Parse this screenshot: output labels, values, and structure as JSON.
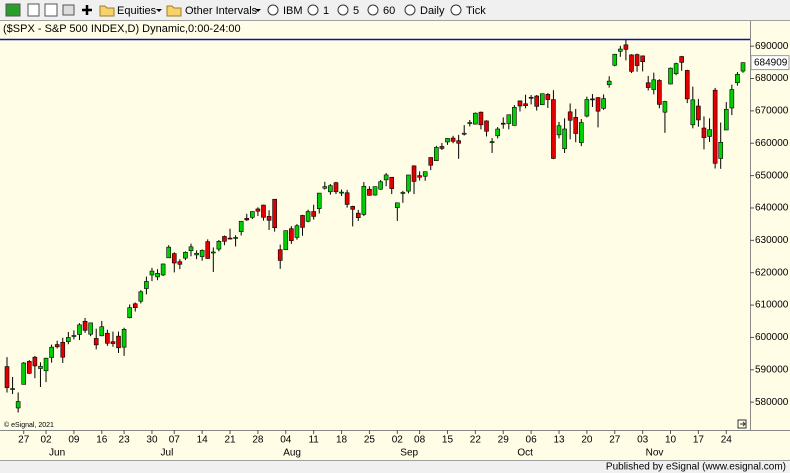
{
  "toolbar": {
    "items": [
      "Equities",
      "Other Intervals",
      "IBM",
      "1",
      "5",
      "60",
      "Daily",
      "Tick"
    ]
  },
  "chart_data": {
    "type": "candlestick",
    "title": "($SPX - S&P 500 INDEX,D) Dynamic,0:00-24:00",
    "categories": [
      null,
      null,
      null,
      "27",
      null,
      null,
      null,
      "02",
      null,
      null,
      null,
      null,
      "09",
      null,
      null,
      null,
      null,
      "16",
      null,
      null,
      null,
      "23",
      null,
      null,
      null,
      null,
      "30",
      null,
      null,
      null,
      "07",
      null,
      null,
      null,
      null,
      "14",
      null,
      null,
      null,
      null,
      "21",
      null,
      null,
      null,
      null,
      "28",
      null,
      null,
      null,
      null,
      "04",
      null,
      null,
      null,
      null,
      "11",
      null,
      null,
      null,
      null,
      "18",
      null,
      null,
      null,
      null,
      "25",
      null,
      null,
      null,
      null,
      "02",
      null,
      null,
      null,
      "08",
      null,
      null,
      null,
      null,
      "15",
      null,
      null,
      null,
      null,
      "22",
      null,
      null,
      null,
      null,
      "29",
      null,
      null,
      null,
      null,
      "06",
      null,
      null,
      null,
      null,
      "13",
      null,
      null,
      null,
      null,
      "20",
      null,
      null,
      null,
      null,
      "27",
      null,
      null,
      null,
      null,
      "03",
      null,
      null,
      null,
      null,
      "10",
      null,
      null,
      null,
      null,
      "17",
      null,
      null,
      null,
      null,
      "24",
      null,
      null,
      null
    ],
    "months": [
      null,
      null,
      null,
      null,
      null,
      null,
      null,
      "Jun",
      null,
      null,
      null,
      null,
      null,
      null,
      null,
      null,
      null,
      null,
      null,
      null,
      null,
      null,
      null,
      null,
      null,
      null,
      null,
      "Jul",
      null,
      null,
      null,
      null,
      null,
      null,
      null,
      null,
      null,
      null,
      null,
      null,
      null,
      null,
      null,
      null,
      null,
      null,
      null,
      null,
      null,
      "Aug",
      null,
      null,
      null,
      null,
      null,
      null,
      null,
      null,
      null,
      null,
      null,
      null,
      null,
      null,
      null,
      null,
      null,
      null,
      null,
      null,
      "Sep",
      null,
      null,
      null,
      null,
      null,
      null,
      null,
      null,
      null,
      null,
      null,
      null,
      null,
      null,
      null,
      null,
      null,
      null,
      null,
      null,
      "Oct",
      null,
      null,
      null,
      null,
      null,
      null,
      null,
      null,
      null,
      null,
      null,
      null,
      null,
      null,
      null,
      null,
      null,
      null,
      null,
      null,
      null,
      null,
      "Nov",
      null,
      null,
      null,
      null,
      null,
      null,
      null,
      null,
      null,
      null,
      null,
      null,
      null,
      null,
      null,
      null,
      null,
      null,
      null,
      null,
      null,
      null
    ],
    "open": [
      591000,
      584200,
      578200,
      585500,
      592600,
      593900,
      590400,
      589700,
      593800,
      597800,
      598500,
      598700,
      600500,
      600900,
      605000,
      601000,
      599700,
      600500,
      601300,
      598700,
      600400,
      597000,
      606100,
      610400,
      611200,
      615100,
      619300,
      618700,
      619300,
      624600,
      625900,
      623400,
      624500,
      626800,
      625500,
      625000,
      629600,
      626200,
      627300,
      631200,
      630700,
      630700,
      632700,
      636800,
      637100,
      639700,
      640900,
      637400,
      642700,
      627100,
      627100,
      633600,
      630900,
      637700,
      635900,
      638900,
      639800,
      646100,
      645000,
      647800,
      644600,
      644700,
      640500,
      638400,
      638000,
      645800,
      644000,
      645800,
      648700,
      649500,
      640100,
      644500,
      645200,
      653000,
      650000,
      649800,
      655600,
      654600,
      659000,
      660400,
      661600,
      660800,
      663100,
      666100,
      665900,
      669600,
      666900,
      660500,
      662300,
      666200,
      666100,
      665500,
      673100,
      672200,
      674200,
      674600,
      671900,
      675100,
      673500,
      662600,
      658300,
      669700,
      668000,
      660200,
      668400,
      673700,
      674100,
      670800,
      678100,
      684100,
      688400,
      690400,
      687300,
      687400,
      687000,
      678700,
      676600,
      679400,
      669600,
      678300,
      681500,
      686800,
      682500,
      665700,
      671500,
      664700,
      662100,
      676400,
      655300,
      664100,
      670900,
      678700,
      682300
    ],
    "high": [
      593900,
      587800,
      583000,
      592400,
      593000,
      594300,
      592300,
      593700,
      597800,
      599000,
      599900,
      601700,
      602200,
      604400,
      606000,
      604600,
      602700,
      605100,
      602400,
      601800,
      601800,
      603000,
      610200,
      610800,
      614600,
      618800,
      621500,
      621100,
      622800,
      628500,
      626300,
      624200,
      626600,
      629000,
      626900,
      627200,
      630300,
      627800,
      630100,
      631500,
      633600,
      631600,
      635900,
      638200,
      639000,
      640200,
      641000,
      639300,
      642700,
      628700,
      633000,
      634400,
      635000,
      637900,
      639500,
      641000,
      644600,
      648100,
      647400,
      648100,
      645700,
      645600,
      640700,
      639400,
      648000,
      646700,
      646600,
      648600,
      650800,
      649500,
      641600,
      645300,
      650200,
      653200,
      651300,
      651300,
      655600,
      659200,
      660100,
      661600,
      662300,
      662600,
      665600,
      667200,
      669500,
      669800,
      667100,
      661600,
      665000,
      668000,
      668900,
      671800,
      673100,
      675000,
      674900,
      674900,
      675300,
      675500,
      676400,
      666600,
      667700,
      672300,
      670600,
      667500,
      674400,
      675200,
      674300,
      675100,
      680700,
      687600,
      690100,
      692000,
      687500,
      687700,
      687000,
      680800,
      681800,
      679800,
      673100,
      683400,
      684900,
      687000,
      682700,
      677500,
      673700,
      668300,
      667700,
      677100,
      666400,
      672700,
      678100,
      682000,
      685000
    ],
    "low": [
      583000,
      582500,
      576800,
      585500,
      588700,
      587400,
      584700,
      586200,
      592200,
      596600,
      592100,
      597900,
      599400,
      599200,
      601400,
      600400,
      596300,
      600400,
      597400,
      597100,
      595200,
      594300,
      605900,
      608000,
      610500,
      613300,
      617400,
      617700,
      619000,
      624600,
      620100,
      621100,
      623900,
      625100,
      624200,
      623700,
      624300,
      620200,
      626600,
      628500,
      630300,
      628100,
      631500,
      636000,
      636600,
      637500,
      636100,
      633200,
      632700,
      621200,
      627000,
      628900,
      630200,
      631400,
      635600,
      636400,
      638300,
      645700,
      644100,
      644300,
      643700,
      640100,
      634300,
      636000,
      637500,
      643800,
      643800,
      645600,
      646700,
      644300,
      636000,
      641600,
      644500,
      644300,
      648500,
      648400,
      651700,
      654600,
      657900,
      659500,
      660000,
      655200,
      662400,
      665200,
      665900,
      664300,
      662100,
      657000,
      661500,
      664500,
      664300,
      665600,
      669800,
      670800,
      672000,
      670100,
      671800,
      670900,
      655100,
      661500,
      657000,
      661200,
      660300,
      659100,
      668000,
      671200,
      664900,
      670300,
      677200,
      683800,
      686700,
      685600,
      681700,
      682100,
      682200,
      676300,
      675100,
      670800,
      663200,
      678200,
      681000,
      682400,
      672400,
      664600,
      665100,
      658100,
      660400,
      652200,
      652100,
      664100,
      668700,
      677800,
      681800
    ],
    "close": [
      584500,
      584200,
      580200,
      592100,
      588900,
      591200,
      591100,
      593600,
      597000,
      597100,
      593900,
      600000,
      600600,
      603900,
      602200,
      604500,
      597700,
      603300,
      598200,
      598100,
      596800,
      602500,
      609200,
      609200,
      614100,
      617300,
      620500,
      619800,
      622700,
      627900,
      623000,
      622600,
      626300,
      628000,
      626000,
      626900,
      624400,
      626400,
      629700,
      629700,
      630500,
      630900,
      635900,
      636300,
      638900,
      639000,
      637100,
      636200,
      633900,
      623800,
      633000,
      629900,
      634500,
      634000,
      638900,
      637400,
      644600,
      646600,
      646900,
      645000,
      644900,
      641100,
      639600,
      637000,
      646700,
      643900,
      646600,
      648100,
      650200,
      646000,
      641600,
      644800,
      650200,
      648200,
      649500,
      651200,
      653200,
      658700,
      658400,
      661500,
      660600,
      660000,
      663100,
      666400,
      669300,
      665700,
      663700,
      660500,
      664400,
      666100,
      668800,
      671100,
      671500,
      671600,
      674000,
      671400,
      675300,
      673500,
      655300,
      665400,
      664400,
      667100,
      663000,
      666400,
      673500,
      673500,
      669900,
      673800,
      679200,
      687500,
      689100,
      689000,
      682200,
      684000,
      685200,
      677200,
      679600,
      672000,
      672900,
      683200,
      684600,
      685000,
      673700,
      673400,
      667200,
      661700,
      664200,
      653800,
      660300,
      670500,
      676600,
      681300,
      684909
    ],
    "up_color": "#00d000",
    "down_color": "#e00000",
    "ylim": [
      571400,
      691900
    ],
    "yticks": [
      580000,
      590000,
      600000,
      610000,
      620000,
      630000,
      640000,
      650000,
      660000,
      670000,
      680000,
      690000
    ],
    "credit": "© eSignal, 2021"
  },
  "footer": "Published by eSignal (www.esignal.com)"
}
